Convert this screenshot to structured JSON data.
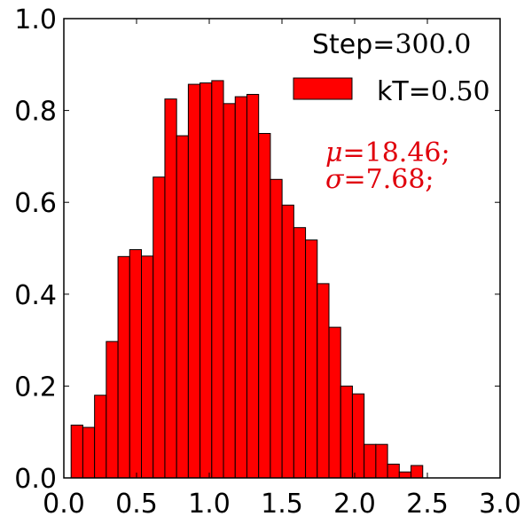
{
  "chart_data": {
    "type": "bar",
    "subtype": "histogram",
    "bar_color": "#ff0000",
    "edge_color": "#000000",
    "xlim": [
      0.0,
      3.0
    ],
    "ylim": [
      0.0,
      1.0
    ],
    "xticks": [
      "0.0",
      "0.5",
      "1.0",
      "1.5",
      "2.0",
      "2.5",
      "3.0"
    ],
    "yticks": [
      "0.0",
      "0.2",
      "0.4",
      "0.6",
      "0.8",
      "1.0"
    ],
    "xtick_values": [
      0.0,
      0.5,
      1.0,
      1.5,
      2.0,
      2.5,
      3.0
    ],
    "ytick_values": [
      0.0,
      0.2,
      0.4,
      0.6,
      0.8,
      1.0
    ],
    "bin_start": 0.05,
    "bin_width": 0.0806,
    "values": [
      0.115,
      0.11,
      0.18,
      0.297,
      0.482,
      0.497,
      0.483,
      0.655,
      0.825,
      0.745,
      0.857,
      0.86,
      0.865,
      0.815,
      0.83,
      0.835,
      0.75,
      0.65,
      0.594,
      0.545,
      0.518,
      0.423,
      0.328,
      0.2,
      0.183,
      0.073,
      0.073,
      0.03,
      0.013,
      0.027
    ],
    "legend": {
      "title_prefix": "Step=",
      "title_value": "300.0",
      "entry_prefix": "kT=",
      "entry_value": "0.50",
      "placement": "top-right"
    },
    "annotations": {
      "line1_symbol": "μ",
      "line1_value": "=18.46;",
      "line2_symbol": "σ",
      "line2_value": "=7.68;",
      "color": "#e0000b"
    },
    "grid": false
  }
}
